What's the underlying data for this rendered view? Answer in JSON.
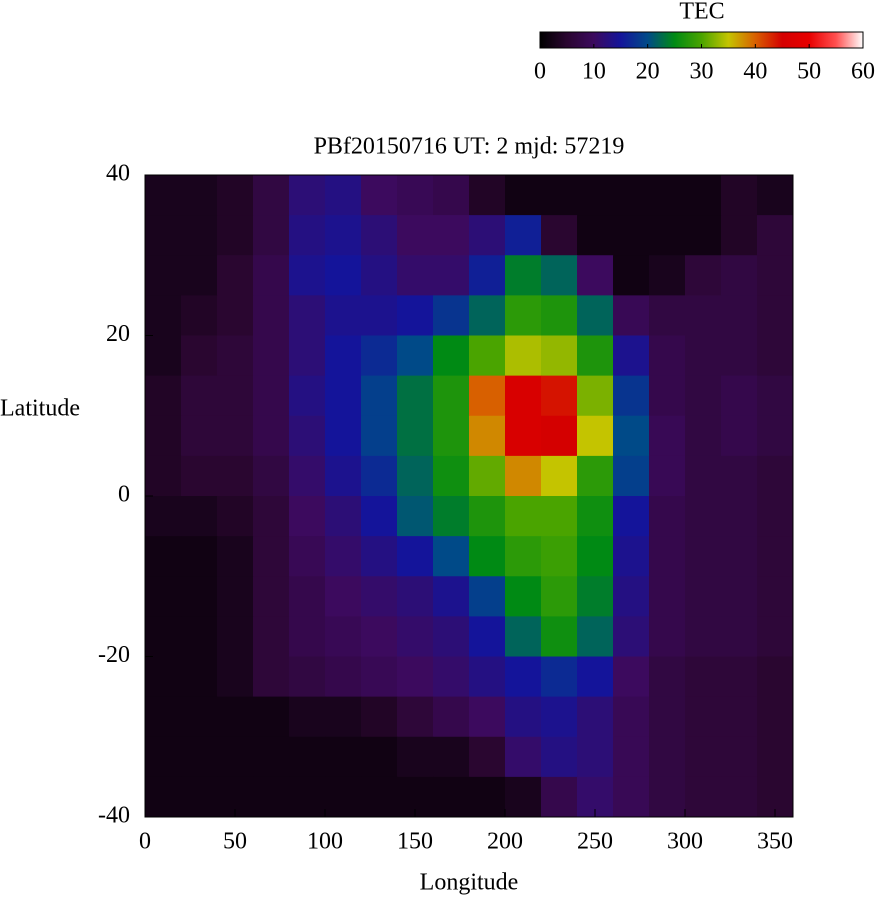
{
  "chart_data": {
    "type": "heatmap",
    "title": "PBf20150716  UT: 2  mjd: 57219",
    "x_label": "Longitude",
    "y_label": "Latitude",
    "x": [
      10,
      30,
      50,
      70,
      90,
      110,
      130,
      150,
      170,
      190,
      210,
      230,
      250,
      270,
      290,
      310,
      330,
      350
    ],
    "y": [
      37.5,
      32.5,
      27.5,
      22.5,
      17.5,
      12.5,
      7.5,
      2.5,
      -2.5,
      -7.5,
      -12.5,
      -17.5,
      -22.5,
      -27.5,
      -32.5,
      -37.5
    ],
    "values": [
      [
        3,
        3,
        4,
        7,
        12,
        13,
        10,
        9,
        8,
        4,
        2,
        2,
        2,
        2,
        2,
        2,
        4,
        3
      ],
      [
        3,
        3,
        4,
        7,
        13,
        14,
        12,
        10,
        10,
        12,
        16,
        5,
        2,
        2,
        2,
        2,
        4,
        6
      ],
      [
        3,
        3,
        5,
        8,
        14,
        15,
        13,
        11,
        11,
        16,
        24,
        22,
        10,
        2,
        3,
        6,
        7,
        6
      ],
      [
        3,
        4,
        5,
        8,
        12,
        14,
        14,
        15,
        18,
        22,
        28,
        27,
        22,
        9,
        7,
        7,
        7,
        6
      ],
      [
        3,
        5,
        6,
        8,
        12,
        15,
        17,
        20,
        25,
        30,
        34,
        33,
        27,
        14,
        8,
        7,
        7,
        6
      ],
      [
        4,
        6,
        6,
        8,
        13,
        15,
        19,
        23,
        27,
        40,
        46,
        44,
        32,
        18,
        8,
        7,
        8,
        7
      ],
      [
        4,
        6,
        6,
        8,
        12,
        15,
        19,
        23,
        27,
        38,
        46,
        45,
        35,
        20,
        9,
        7,
        8,
        7
      ],
      [
        4,
        5,
        5,
        7,
        11,
        14,
        17,
        22,
        26,
        31,
        38,
        35,
        28,
        19,
        9,
        7,
        7,
        6
      ],
      [
        3,
        3,
        4,
        6,
        10,
        12,
        15,
        21,
        24,
        27,
        30,
        30,
        26,
        15,
        8,
        7,
        7,
        6
      ],
      [
        2,
        2,
        3,
        6,
        9,
        11,
        13,
        15,
        20,
        25,
        28,
        29,
        25,
        14,
        8,
        7,
        7,
        6
      ],
      [
        2,
        2,
        3,
        6,
        8,
        10,
        11,
        12,
        14,
        19,
        25,
        28,
        24,
        13,
        8,
        7,
        7,
        6
      ],
      [
        2,
        2,
        3,
        6,
        8,
        9,
        10,
        11,
        12,
        15,
        22,
        26,
        22,
        12,
        8,
        7,
        7,
        6
      ],
      [
        2,
        2,
        3,
        6,
        7,
        8,
        9,
        10,
        11,
        13,
        15,
        17,
        15,
        10,
        7,
        6,
        6,
        5
      ],
      [
        2,
        2,
        2,
        2,
        3,
        3,
        4,
        6,
        8,
        10,
        13,
        14,
        12,
        9,
        7,
        6,
        6,
        5
      ],
      [
        2,
        2,
        2,
        2,
        2,
        2,
        2,
        3,
        3,
        5,
        11,
        13,
        12,
        9,
        7,
        6,
        6,
        5
      ],
      [
        2,
        2,
        2,
        2,
        2,
        2,
        2,
        2,
        2,
        2,
        3,
        8,
        11,
        9,
        7,
        6,
        6,
        5
      ]
    ],
    "xlim": [
      0,
      360
    ],
    "ylim": [
      -40,
      40
    ],
    "xticks": [
      0,
      50,
      100,
      150,
      200,
      250,
      300,
      350
    ],
    "yticks": [
      -40,
      -20,
      0,
      20,
      40
    ],
    "colorbar": {
      "label": "TEC",
      "lim": [
        0,
        60
      ],
      "ticks": [
        0,
        10,
        20,
        30,
        40,
        50,
        60
      ],
      "colormap": [
        "#000000",
        "#2a0630",
        "#3c0a5e",
        "#14149a",
        "#004a88",
        "#008a14",
        "#4aa400",
        "#c4c400",
        "#d86000",
        "#d40000",
        "#e80000",
        "#ff5050",
        "#ffffff"
      ]
    }
  }
}
